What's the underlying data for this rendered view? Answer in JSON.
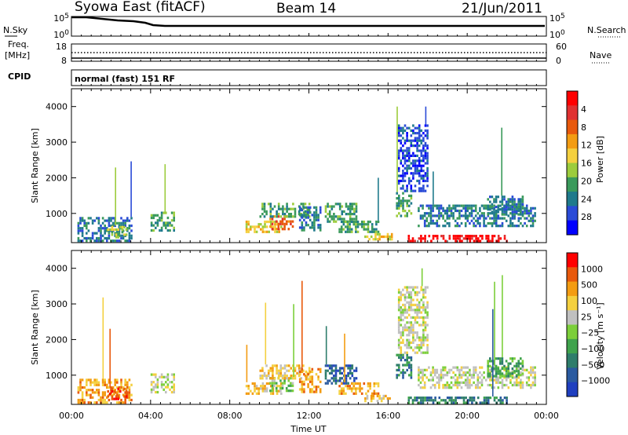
{
  "header": {
    "station": "Syowa East (fitACF)",
    "beam": "Beam 14",
    "date": "21/Jun/2011"
  },
  "side_labels": {
    "nsky": "N.Sky",
    "nsearch": "N.Search",
    "freq_line1": "Freq.",
    "freq_line2": "[MHz]",
    "nave": "Nave",
    "cpid": "CPID"
  },
  "noise_axis": {
    "top": "10^5",
    "bottom": "10^0"
  },
  "freq_axis": {
    "left_top": "18",
    "left_bottom": "8",
    "right_top": "60",
    "right_bottom": "0"
  },
  "cpid_text": "normal (fast) 151 RF",
  "time_axis": {
    "labels": [
      "00:00",
      "04:00",
      "08:00",
      "12:00",
      "16:00",
      "20:00",
      "00:00"
    ],
    "xlabel": "Time UT"
  },
  "colors": {
    "frame": "#000000"
  },
  "chart_data": [
    {
      "type": "heatmap",
      "name": "power",
      "ylabel": "Slant Range [km]",
      "yticks": [
        1000,
        2000,
        3000,
        4000
      ],
      "ylim": [
        180,
        4500
      ],
      "xlim_hours": [
        0,
        24
      ],
      "colorbar": {
        "label": "Power [dB]",
        "ticks": [
          "4",
          "8",
          "12",
          "16",
          "20",
          "24",
          "28"
        ],
        "colors": [
          "#0000ff",
          "#2a4bd7",
          "#1f7a8c",
          "#3a9a5b",
          "#9ccc3c",
          "#f4d03f",
          "#f39c12",
          "#e8590c",
          "#e03131",
          "#ff0000"
        ]
      },
      "regions": [
        {
          "t": [
            0.3,
            3.0
          ],
          "r": [
            200,
            900
          ],
          "level": 2
        },
        {
          "t": [
            1.8,
            2.8
          ],
          "r": [
            350,
            650
          ],
          "level": 4
        },
        {
          "t": [
            4.0,
            5.2
          ],
          "r": [
            550,
            1050
          ],
          "level": 3
        },
        {
          "t": [
            8.8,
            10.6
          ],
          "r": [
            450,
            800
          ],
          "level": 5
        },
        {
          "t": [
            10.0,
            11.2
          ],
          "r": [
            550,
            950
          ],
          "level": 7
        },
        {
          "t": [
            9.5,
            12.0
          ],
          "r": [
            900,
            1300
          ],
          "level": 3
        },
        {
          "t": [
            11.5,
            12.6
          ],
          "r": [
            500,
            1200
          ],
          "level": 2
        },
        {
          "t": [
            12.8,
            14.4
          ],
          "r": [
            750,
            1300
          ],
          "level": 3
        },
        {
          "t": [
            13.5,
            15.5
          ],
          "r": [
            450,
            800
          ],
          "level": 3
        },
        {
          "t": [
            14.8,
            16.2
          ],
          "r": [
            280,
            450
          ],
          "level": 5
        },
        {
          "t": [
            16.4,
            17.2
          ],
          "r": [
            900,
            1600
          ],
          "level": 3
        },
        {
          "t": [
            17.0,
            22.0
          ],
          "r": [
            250,
            400
          ],
          "level": 9
        },
        {
          "t": [
            17.5,
            23.4
          ],
          "r": [
            650,
            1250
          ],
          "level": 2
        },
        {
          "t": [
            16.5,
            18.0
          ],
          "r": [
            1600,
            3500
          ],
          "level": 1
        },
        {
          "t": [
            21.0,
            22.8
          ],
          "r": [
            1000,
            1500
          ],
          "level": 2
        }
      ]
    },
    {
      "type": "heatmap",
      "name": "velocity",
      "ylabel": "Slant Range [km]",
      "yticks": [
        1000,
        2000,
        3000,
        4000
      ],
      "ylim": [
        180,
        4500
      ],
      "xlim_hours": [
        0,
        24
      ],
      "colorbar": {
        "label": "Velocity [m s⁻¹]",
        "ticks": [
          "1000",
          "500",
          "100",
          "25",
          "−25",
          "−100",
          "−500",
          "−1000"
        ],
        "colors": [
          "#1f3fbf",
          "#2a5aa0",
          "#2e7d6b",
          "#3fa34d",
          "#7ccf3a",
          "#c0c0c0",
          "#f4d03f",
          "#f39c12",
          "#e8590c",
          "#ff0000"
        ]
      },
      "regions": [
        {
          "t": [
            0.3,
            3.0
          ],
          "r": [
            200,
            900
          ],
          "level": 7
        },
        {
          "t": [
            1.8,
            2.8
          ],
          "r": [
            350,
            650
          ],
          "level": 8
        },
        {
          "t": [
            4.0,
            5.2
          ],
          "r": [
            550,
            1050
          ],
          "level": 5
        },
        {
          "t": [
            8.8,
            10.6
          ],
          "r": [
            450,
            800
          ],
          "level": 6
        },
        {
          "t": [
            10.0,
            11.2
          ],
          "r": [
            550,
            950
          ],
          "level": 4
        },
        {
          "t": [
            9.5,
            12.0
          ],
          "r": [
            900,
            1300
          ],
          "level": 6
        },
        {
          "t": [
            11.5,
            12.6
          ],
          "r": [
            500,
            1200
          ],
          "level": 7
        },
        {
          "t": [
            12.8,
            14.4
          ],
          "r": [
            750,
            1300
          ],
          "level": 1
        },
        {
          "t": [
            13.5,
            15.5
          ],
          "r": [
            450,
            800
          ],
          "level": 7
        },
        {
          "t": [
            14.8,
            16.2
          ],
          "r": [
            280,
            450
          ],
          "level": 6
        },
        {
          "t": [
            16.4,
            17.2
          ],
          "r": [
            900,
            1600
          ],
          "level": 2
        },
        {
          "t": [
            17.0,
            22.0
          ],
          "r": [
            250,
            400
          ],
          "level": 2
        },
        {
          "t": [
            17.5,
            23.4
          ],
          "r": [
            650,
            1250
          ],
          "level": 5
        },
        {
          "t": [
            16.5,
            18.0
          ],
          "r": [
            1600,
            3500
          ],
          "level": 5
        },
        {
          "t": [
            21.0,
            22.8
          ],
          "r": [
            1000,
            1500
          ],
          "level": 3
        }
      ]
    }
  ]
}
